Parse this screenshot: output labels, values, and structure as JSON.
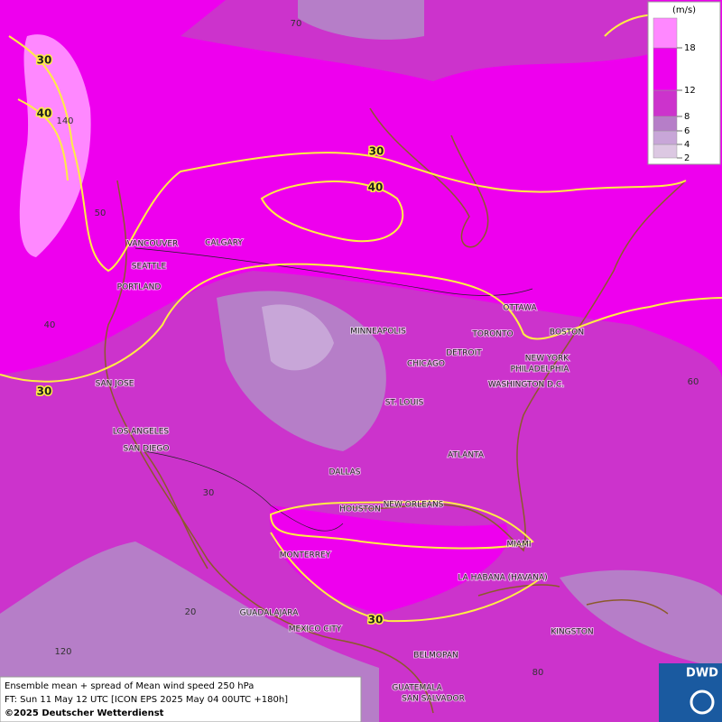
{
  "legend": {
    "unit": "(m/s)",
    "ticks": [
      2,
      4,
      6,
      8,
      12,
      18
    ],
    "colors": [
      "#dcc8e2",
      "#c8a6d8",
      "#b67ec8",
      "#cc33cc",
      "#ee00ee",
      "#ff88ff"
    ]
  },
  "cities": [
    "VANCOUVER",
    "CALGARY",
    "SEATTLE",
    "PORTLAND",
    "OTTAWA",
    "MINNEAPOLIS",
    "TORONTO",
    "BOSTON",
    "DETROIT",
    "NEW YORK",
    "CHICAGO",
    "PHILADELPHIA",
    "SAN JOSE",
    "WASHINGTON D.C.",
    "ST. LOUIS",
    "LOS ANGELES",
    "SAN DIEGO",
    "ATLANTA",
    "DALLAS",
    "HOUSTON",
    "NEW ORLEANS",
    "MIAMI",
    "MONTERREY",
    "LA HABANA (HAVANA)",
    "GUADALAJARA",
    "MEXICO CITY",
    "KINGSTON",
    "BELMOPAN",
    "GUATEMALA",
    "SAN SALVADOR"
  ],
  "contour_labels": [
    30,
    40,
    30,
    40,
    30,
    30
  ],
  "graticule_labels": [
    70,
    140,
    50,
    40,
    60,
    30,
    20,
    120,
    80
  ],
  "caption": [
    "Ensemble mean + spread of Mean wind speed 250 hPa",
    "FT: Sun 11 May 12 UTC [ICON EPS 2025 May 04 00UTC +180h]",
    "©2025 Deutscher Wetterdienst"
  ],
  "logo": "DWD"
}
